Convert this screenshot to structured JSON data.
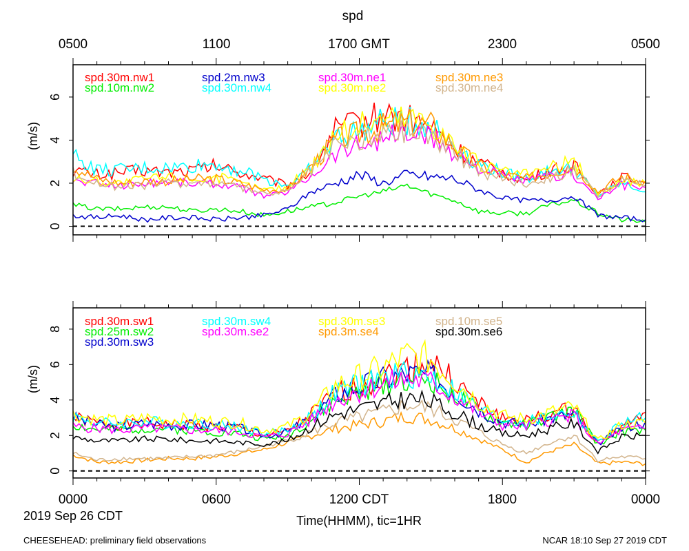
{
  "page": {
    "title": "spd",
    "top_axis_labels": [
      "0500",
      "1100",
      "1700 GMT",
      "2300",
      "0500"
    ],
    "bottom_axis_labels": [
      "0000",
      "0600",
      "1200 CDT",
      "1800",
      "0000"
    ],
    "date_label": "2019 Sep 26 CDT",
    "xlabel": "Time(HHMM), tic=1HR",
    "footer_left": "CHEESEHEAD: preliminary field observations",
    "footer_right": "NCAR 18:10 Sep 27 2019 CDT"
  },
  "chart_data": [
    {
      "type": "line",
      "panel": "top",
      "ylabel": "(m/s)",
      "ylim": [
        -0.4,
        7.5
      ],
      "yticks": [
        0,
        2,
        4,
        6
      ],
      "xlim": [
        0,
        24
      ],
      "x_unit": "hours CDT",
      "reference_line": 0,
      "series": [
        {
          "name": "spd.30m.nw1",
          "color": "#ff0000",
          "x": [
            0,
            1,
            2,
            3,
            4,
            5,
            6,
            7,
            8,
            9,
            10,
            11,
            12,
            13,
            14,
            15,
            16,
            17,
            18,
            19,
            20,
            21,
            22,
            23,
            24
          ],
          "values": [
            2.6,
            2.4,
            2.5,
            2.6,
            2.5,
            2.6,
            2.8,
            2.5,
            2.2,
            1.9,
            2.6,
            4.5,
            4.8,
            5.2,
            5.0,
            4.6,
            3.6,
            2.9,
            2.5,
            2.1,
            2.6,
            2.8,
            1.5,
            2.3,
            2.0
          ]
        },
        {
          "name": "spd.10m.nw2",
          "color": "#00ee00",
          "x": [
            0,
            1,
            2,
            3,
            4,
            5,
            6,
            7,
            8,
            9,
            10,
            11,
            12,
            13,
            14,
            15,
            16,
            17,
            18,
            19,
            20,
            21,
            22,
            23,
            24
          ],
          "values": [
            1.0,
            0.8,
            0.8,
            0.9,
            0.9,
            0.7,
            0.8,
            0.7,
            0.5,
            0.7,
            0.9,
            1.1,
            1.4,
            1.6,
            1.9,
            1.5,
            1.2,
            0.7,
            0.6,
            0.6,
            1.0,
            1.2,
            0.6,
            0.3,
            0.2
          ]
        },
        {
          "name": "spd.2m.nw3",
          "color": "#0000cc",
          "x": [
            0,
            1,
            2,
            3,
            4,
            5,
            6,
            7,
            8,
            9,
            10,
            11,
            12,
            13,
            14,
            15,
            16,
            17,
            18,
            19,
            20,
            21,
            22,
            23,
            24
          ],
          "values": [
            0.5,
            0.4,
            0.5,
            0.3,
            0.4,
            0.4,
            0.3,
            0.4,
            0.5,
            0.8,
            1.6,
            2.0,
            2.4,
            2.0,
            2.4,
            2.3,
            2.2,
            1.7,
            1.3,
            1.2,
            1.2,
            1.4,
            0.5,
            0.4,
            0.3
          ]
        },
        {
          "name": "spd.30m.nw4",
          "color": "#00ffff",
          "x": [
            0,
            1,
            2,
            3,
            4,
            5,
            6,
            7,
            8,
            9,
            10,
            11,
            12,
            13,
            14,
            15,
            16,
            17,
            18,
            19,
            20,
            21,
            22,
            23,
            24
          ],
          "values": [
            3.3,
            2.6,
            2.6,
            2.7,
            2.7,
            2.8,
            2.9,
            2.6,
            2.2,
            1.9,
            2.7,
            4.1,
            4.4,
            4.8,
            4.9,
            4.7,
            3.8,
            2.9,
            2.5,
            2.2,
            2.6,
            2.7,
            1.4,
            2.0,
            1.6
          ]
        },
        {
          "name": "spd.30m.ne1",
          "color": "#ff00ff",
          "x": [
            0,
            1,
            2,
            3,
            4,
            5,
            6,
            7,
            8,
            9,
            10,
            11,
            12,
            13,
            14,
            15,
            16,
            17,
            18,
            19,
            20,
            21,
            22,
            23,
            24
          ],
          "values": [
            2.1,
            2.0,
            1.9,
            2.0,
            2.1,
            2.0,
            2.0,
            1.8,
            1.4,
            1.6,
            2.4,
            3.4,
            3.8,
            4.1,
            4.3,
            4.1,
            3.4,
            2.7,
            2.3,
            2.1,
            2.3,
            2.4,
            1.3,
            1.9,
            1.8
          ]
        },
        {
          "name": "spd.30m.ne2",
          "color": "#ffff00",
          "x": [
            0,
            1,
            2,
            3,
            4,
            5,
            6,
            7,
            8,
            9,
            10,
            11,
            12,
            13,
            14,
            15,
            16,
            17,
            18,
            19,
            20,
            21,
            22,
            23,
            24
          ],
          "values": [
            2.2,
            2.1,
            2.0,
            2.2,
            2.3,
            2.2,
            2.3,
            2.0,
            1.7,
            1.8,
            2.8,
            4.3,
            4.7,
            5.0,
            5.1,
            4.9,
            3.8,
            2.9,
            2.5,
            2.4,
            2.7,
            3.0,
            1.5,
            2.1,
            2.0
          ]
        },
        {
          "name": "spd.30m.ne3",
          "color": "#ff9900",
          "x": [
            0,
            1,
            2,
            3,
            4,
            5,
            6,
            7,
            8,
            9,
            10,
            11,
            12,
            13,
            14,
            15,
            16,
            17,
            18,
            19,
            20,
            21,
            22,
            23,
            24
          ],
          "values": [
            2.8,
            2.2,
            2.0,
            2.1,
            2.1,
            2.2,
            2.2,
            2.0,
            1.7,
            1.7,
            2.8,
            4.0,
            4.3,
            4.6,
            4.8,
            4.7,
            3.7,
            2.8,
            2.4,
            2.2,
            2.5,
            2.8,
            1.6,
            2.3,
            2.1
          ]
        },
        {
          "name": "spd.30m.ne4",
          "color": "#d2b48c",
          "x": [
            0,
            1,
            2,
            3,
            4,
            5,
            6,
            7,
            8,
            9,
            10,
            11,
            12,
            13,
            14,
            15,
            16,
            17,
            18,
            19,
            20,
            21,
            22,
            23,
            24
          ],
          "values": [
            2.5,
            2.0,
            1.8,
            1.9,
            2.0,
            2.0,
            2.0,
            1.8,
            1.5,
            1.6,
            2.6,
            3.7,
            4.0,
            4.3,
            4.5,
            4.3,
            3.4,
            2.6,
            2.2,
            2.0,
            2.3,
            2.6,
            1.4,
            2.1,
            1.9
          ]
        }
      ]
    },
    {
      "type": "line",
      "panel": "bottom",
      "ylabel": "(m/s)",
      "ylim": [
        -0.4,
        9.2
      ],
      "yticks": [
        0,
        2,
        4,
        6,
        8
      ],
      "xlim": [
        0,
        24
      ],
      "x_unit": "hours CDT",
      "reference_line": 0,
      "series": [
        {
          "name": "spd.30m.sw1",
          "color": "#ff0000",
          "x": [
            0,
            1,
            2,
            3,
            4,
            5,
            6,
            7,
            8,
            9,
            10,
            11,
            12,
            13,
            14,
            15,
            16,
            17,
            18,
            19,
            20,
            21,
            22,
            23,
            24
          ],
          "values": [
            3.0,
            2.7,
            2.6,
            2.7,
            2.6,
            2.6,
            2.5,
            2.4,
            2.0,
            2.2,
            3.2,
            4.3,
            4.8,
            5.3,
            5.8,
            6.2,
            5.0,
            3.8,
            3.0,
            2.8,
            3.2,
            3.5,
            1.6,
            2.5,
            3.3
          ]
        },
        {
          "name": "spd.25m.sw2",
          "color": "#00ee00",
          "x": [
            0,
            1,
            2,
            3,
            4,
            5,
            6,
            7,
            8,
            9,
            10,
            11,
            12,
            13,
            14,
            15,
            16,
            17,
            18,
            19,
            20,
            21,
            22,
            23,
            24
          ],
          "values": [
            2.6,
            2.3,
            2.3,
            2.4,
            2.4,
            2.3,
            2.2,
            2.1,
            1.8,
            2.0,
            2.9,
            3.9,
            4.4,
            4.9,
            5.3,
            5.1,
            4.3,
            3.3,
            2.7,
            2.6,
            3.0,
            3.4,
            1.5,
            2.2,
            2.3
          ]
        },
        {
          "name": "spd.30m.sw3",
          "color": "#0000cc",
          "x": [
            0,
            1,
            2,
            3,
            4,
            5,
            6,
            7,
            8,
            9,
            10,
            11,
            12,
            13,
            14,
            15,
            16,
            17,
            18,
            19,
            20,
            21,
            22,
            23,
            24
          ],
          "values": [
            3.0,
            2.6,
            2.5,
            2.7,
            2.6,
            2.6,
            2.6,
            2.4,
            2.0,
            2.2,
            3.0,
            4.3,
            4.8,
            5.2,
            5.5,
            5.4,
            4.5,
            3.5,
            2.8,
            2.6,
            3.0,
            3.2,
            1.5,
            2.4,
            2.8
          ]
        },
        {
          "name": "spd.30m.sw4",
          "color": "#00ffff",
          "x": [
            0,
            1,
            2,
            3,
            4,
            5,
            6,
            7,
            8,
            9,
            10,
            11,
            12,
            13,
            14,
            15,
            16,
            17,
            18,
            19,
            20,
            21,
            22,
            23,
            24
          ],
          "values": [
            3.1,
            2.7,
            2.7,
            2.8,
            2.7,
            2.7,
            2.6,
            2.5,
            2.1,
            2.3,
            3.1,
            4.4,
            4.9,
            5.2,
            5.5,
            5.3,
            4.5,
            3.5,
            2.9,
            2.7,
            3.1,
            3.3,
            1.6,
            2.7,
            3.0
          ]
        },
        {
          "name": "spd.30m.se2",
          "color": "#ff00ff",
          "x": [
            0,
            1,
            2,
            3,
            4,
            5,
            6,
            7,
            8,
            9,
            10,
            11,
            12,
            13,
            14,
            15,
            16,
            17,
            18,
            19,
            20,
            21,
            22,
            23,
            24
          ],
          "values": [
            2.5,
            2.4,
            2.3,
            2.4,
            2.4,
            2.3,
            2.3,
            2.2,
            1.9,
            2.1,
            2.9,
            4.0,
            4.5,
            4.9,
            5.2,
            5.0,
            4.2,
            3.3,
            2.6,
            2.5,
            2.9,
            3.1,
            1.5,
            2.3,
            2.4
          ]
        },
        {
          "name": "spd.30m.se3",
          "color": "#ffff00",
          "x": [
            0,
            1,
            2,
            3,
            4,
            5,
            6,
            7,
            8,
            9,
            10,
            11,
            12,
            13,
            14,
            15,
            16,
            17,
            18,
            19,
            20,
            21,
            22,
            23,
            24
          ],
          "values": [
            3.2,
            2.9,
            2.8,
            3.0,
            2.9,
            2.9,
            2.8,
            2.7,
            2.3,
            2.5,
            3.3,
            4.8,
            5.3,
            5.8,
            6.5,
            6.3,
            5.1,
            3.9,
            3.1,
            2.9,
            3.3,
            3.6,
            1.7,
            2.6,
            2.7
          ]
        },
        {
          "name": "spd.3m.se4",
          "color": "#ff9900",
          "x": [
            0,
            1,
            2,
            3,
            4,
            5,
            6,
            7,
            8,
            9,
            10,
            11,
            12,
            13,
            14,
            15,
            16,
            17,
            18,
            19,
            20,
            21,
            22,
            23,
            24
          ],
          "values": [
            0.9,
            0.5,
            0.5,
            0.6,
            0.7,
            0.7,
            0.8,
            1.0,
            1.2,
            1.6,
            2.0,
            2.4,
            2.6,
            2.8,
            3.1,
            2.9,
            2.4,
            1.8,
            1.2,
            0.5,
            1.1,
            1.5,
            0.4,
            0.5,
            0.4
          ]
        },
        {
          "name": "spd.10m.se5",
          "color": "#d2b48c",
          "x": [
            0,
            1,
            2,
            3,
            4,
            5,
            6,
            7,
            8,
            9,
            10,
            11,
            12,
            13,
            14,
            15,
            16,
            17,
            18,
            19,
            20,
            21,
            22,
            23,
            24
          ],
          "values": [
            1.0,
            0.6,
            0.7,
            0.7,
            0.7,
            0.8,
            0.9,
            1.1,
            1.4,
            1.7,
            2.2,
            2.7,
            3.0,
            3.3,
            3.7,
            3.5,
            2.9,
            2.2,
            1.5,
            1.0,
            1.6,
            2.0,
            0.6,
            0.8,
            0.7
          ]
        },
        {
          "name": "spd.30m.se6",
          "color": "#000000",
          "x": [
            0,
            1,
            2,
            3,
            4,
            5,
            6,
            7,
            8,
            9,
            10,
            11,
            12,
            13,
            14,
            15,
            16,
            17,
            18,
            19,
            20,
            21,
            22,
            23,
            24
          ],
          "values": [
            1.9,
            1.7,
            1.7,
            1.8,
            1.8,
            1.7,
            1.7,
            1.6,
            1.5,
            1.7,
            2.5,
            3.2,
            3.5,
            3.8,
            4.1,
            3.9,
            3.3,
            2.6,
            2.1,
            2.0,
            2.4,
            2.7,
            1.1,
            1.9,
            2.0
          ]
        }
      ]
    }
  ]
}
